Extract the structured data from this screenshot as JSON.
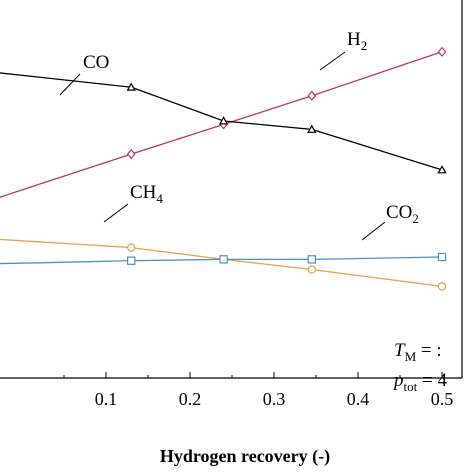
{
  "chart_data": {
    "type": "line",
    "xlabel": "Hydrogen recovery (-)",
    "ylabel": "",
    "xlim": [
      0.0,
      0.52
    ],
    "x_ticks": [
      "0.1",
      "0.2",
      "0.3",
      "0.4",
      "0.5"
    ],
    "x_tick_values": [
      0.1,
      0.2,
      0.3,
      0.4,
      0.5
    ],
    "series": [
      {
        "name": "H2",
        "label_main": "H",
        "label_sub": "2",
        "color": "#c0306a",
        "marker": "diamond",
        "x": [
          0.02,
          0.13,
          0.24,
          0.345,
          0.5
        ],
        "y": [
          0.272,
          0.362,
          0.45,
          0.535,
          0.665
        ]
      },
      {
        "name": "CO",
        "label_main": "CO",
        "label_sub": "",
        "color": "#000000",
        "marker": "triangle",
        "x": [
          0.02,
          0.13,
          0.24,
          0.345,
          0.5
        ],
        "y": [
          0.59,
          0.56,
          0.46,
          0.435,
          0.315
        ]
      },
      {
        "name": "CH4",
        "label_main": "CH",
        "label_sub": "4",
        "color": "#e8a04a",
        "marker": "circle",
        "x": [
          0.02,
          0.13,
          0.24,
          0.345,
          0.5
        ],
        "y": [
          0.102,
          0.085,
          0.05,
          0.02,
          -0.03
        ]
      },
      {
        "name": "CO2",
        "label_main": "CO",
        "label_sub": "2",
        "color": "#4a90d0",
        "marker": "square",
        "x": [
          0.02,
          0.13,
          0.24,
          0.345,
          0.5
        ],
        "y": [
          0.04,
          0.046,
          0.05,
          0.05,
          0.057
        ]
      }
    ],
    "annotations": [
      {
        "main": "T",
        "sub": "M",
        "rest": " = :"
      },
      {
        "main": "p",
        "sub": "tot",
        "rest": " = 4"
      }
    ],
    "grid": false,
    "legend": "inline labels"
  }
}
